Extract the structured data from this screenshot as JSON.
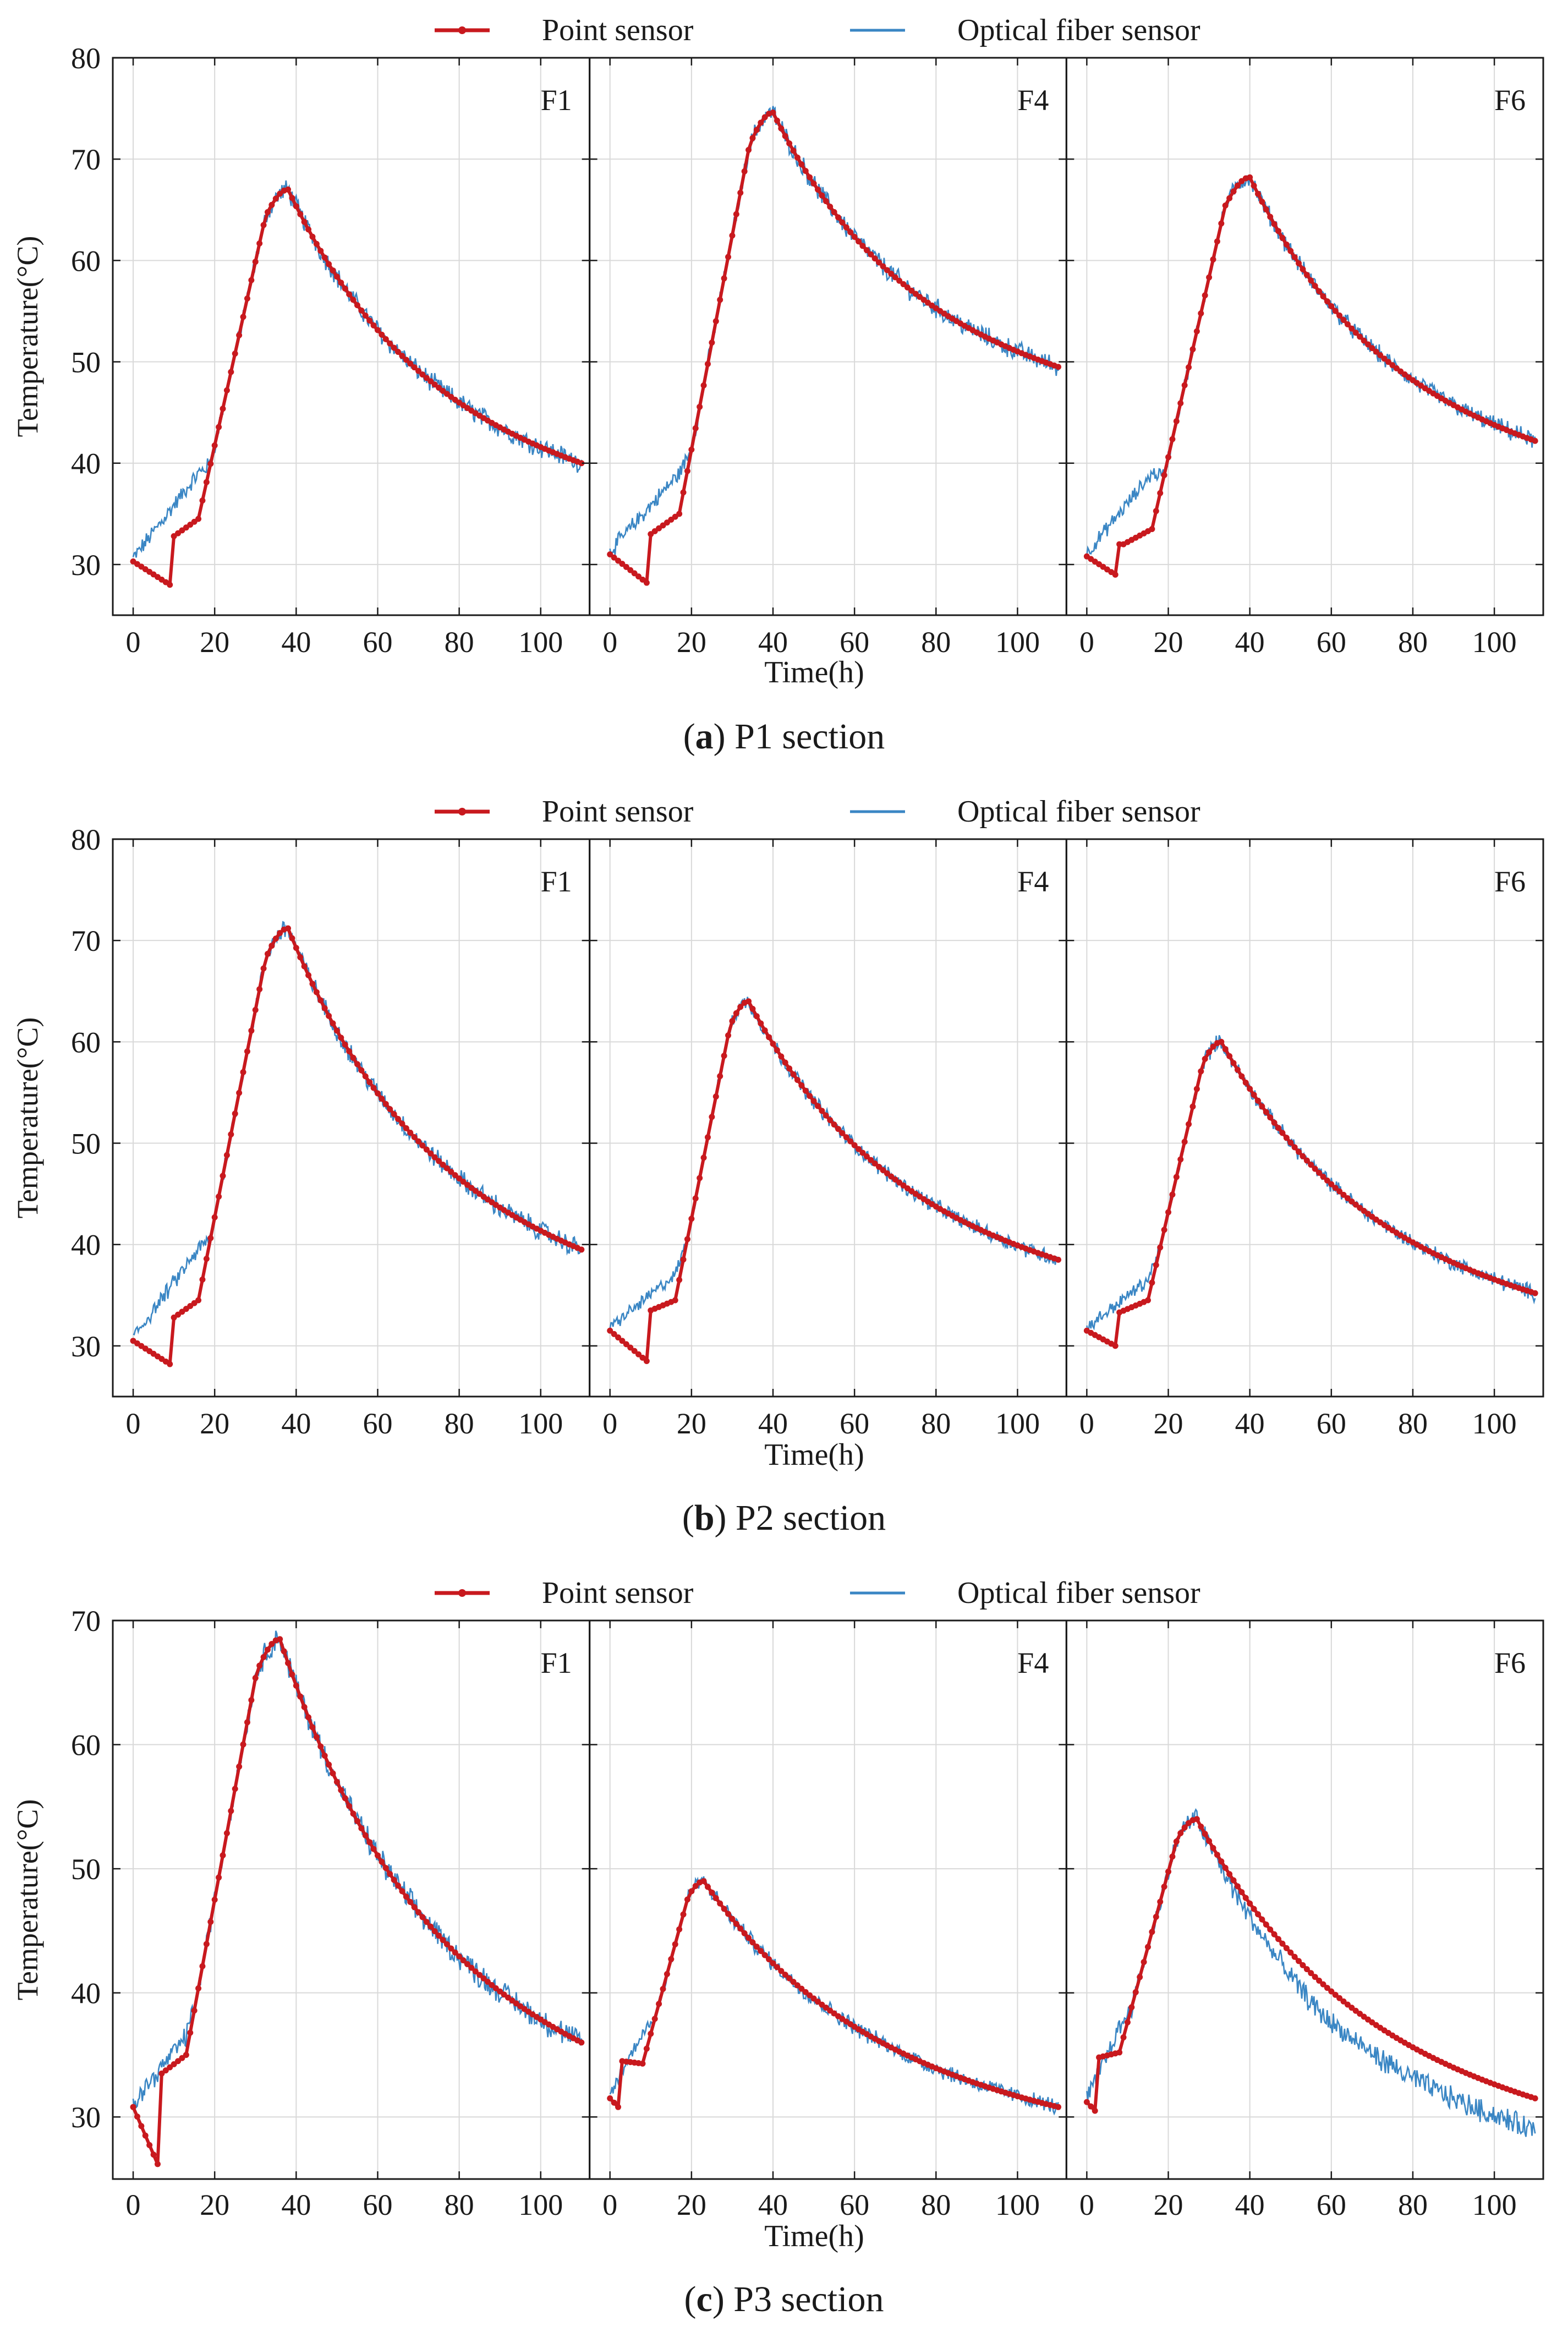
{
  "colors": {
    "point_sensor": "#c8191e",
    "optical_fiber": "#3a86c4",
    "grid": "#d9d9d9",
    "axis": "#1a1a1a"
  },
  "chart_data": [
    {
      "type": "line",
      "caption_letter": "a",
      "caption_text": " P1 section",
      "xlabel": "Time(h)",
      "ylabel": "Temperature(°C)",
      "xlim": [
        -5,
        112
      ],
      "ylim": [
        25,
        80
      ],
      "xticks": [
        0,
        20,
        40,
        60,
        80,
        100
      ],
      "yticks": [
        30,
        40,
        50,
        60,
        70,
        80
      ],
      "legend": [
        "Point sensor",
        "Optical fiber sensor"
      ],
      "legend_position": "top-center",
      "grid": true,
      "panels": [
        {
          "label": "F1",
          "start": 30.3,
          "dip": 28.0,
          "dip_t": 9,
          "jump": 32.8,
          "jump_t": 10,
          "pre": 34.5,
          "pre_t": 16,
          "peak": 67.0,
          "peak_t": 38,
          "end": 40.0,
          "fiber_offset": 4.5,
          "fiber_noise": 0.9
        },
        {
          "label": "F4",
          "start": 31.0,
          "dip": 28.2,
          "dip_t": 9,
          "jump": 33.0,
          "jump_t": 10,
          "pre": 35.0,
          "pre_t": 17,
          "peak": 74.6,
          "peak_t": 40,
          "end": 49.5,
          "fiber_offset": 4.0,
          "fiber_noise": 0.9
        },
        {
          "label": "F6",
          "start": 30.8,
          "dip": 29.0,
          "dip_t": 7,
          "jump": 32.0,
          "jump_t": 9,
          "pre": 33.5,
          "pre_t": 16,
          "peak": 68.2,
          "peak_t": 40,
          "end": 42.2,
          "fiber_offset": 5.5,
          "fiber_noise": 0.8
        }
      ]
    },
    {
      "type": "line",
      "caption_letter": "b",
      "caption_text": " P2 section",
      "xlabel": "Time(h)",
      "ylabel": "Temperature(°C)",
      "xlim": [
        -5,
        112
      ],
      "ylim": [
        25,
        80
      ],
      "xticks": [
        0,
        20,
        40,
        60,
        80,
        100
      ],
      "yticks": [
        30,
        40,
        50,
        60,
        70,
        80
      ],
      "legend": [
        "Point sensor",
        "Optical fiber sensor"
      ],
      "legend_position": "top-center",
      "grid": true,
      "panels": [
        {
          "label": "F1",
          "start": 30.5,
          "dip": 28.2,
          "dip_t": 9,
          "jump": 32.8,
          "jump_t": 10,
          "pre": 34.5,
          "pre_t": 16,
          "peak": 71.2,
          "peak_t": 38,
          "end": 39.5,
          "fiber_offset": 5.0,
          "fiber_noise": 0.9
        },
        {
          "label": "F4",
          "start": 31.5,
          "dip": 28.5,
          "dip_t": 9,
          "jump": 33.5,
          "jump_t": 10,
          "pre": 34.5,
          "pre_t": 16,
          "peak": 64.0,
          "peak_t": 34,
          "end": 38.5,
          "fiber_offset": 2.5,
          "fiber_noise": 0.7
        },
        {
          "label": "F6",
          "start": 31.5,
          "dip": 30.0,
          "dip_t": 7,
          "jump": 33.3,
          "jump_t": 8,
          "pre": 34.5,
          "pre_t": 15,
          "peak": 60.0,
          "peak_t": 33,
          "end": 35.2,
          "fiber_offset": 2.0,
          "fiber_noise": 0.7
        }
      ]
    },
    {
      "type": "line",
      "caption_letter": "c",
      "caption_text": " P3 section",
      "xlabel": "Time(h)",
      "ylabel": "Temperature(°C)",
      "xlim": [
        -5,
        112
      ],
      "ylim": [
        25,
        70
      ],
      "xticks": [
        0,
        20,
        40,
        60,
        80,
        100
      ],
      "yticks": [
        30,
        40,
        50,
        60,
        70
      ],
      "legend": [
        "Point sensor",
        "Optical fiber sensor"
      ],
      "legend_position": "top-center",
      "grid": true,
      "panels": [
        {
          "label": "F1",
          "start": 30.8,
          "dip": 26.2,
          "dip_t": 6,
          "jump": 33.5,
          "jump_t": 7,
          "pre": 35.0,
          "pre_t": 13,
          "peak": 68.5,
          "peak_t": 36,
          "end": 36.0,
          "fiber_offset": 1.5,
          "fiber_noise": 0.9
        },
        {
          "label": "F4",
          "start": 31.5,
          "dip": 30.8,
          "dip_t": 2,
          "jump": 34.5,
          "jump_t": 3,
          "pre": 34.3,
          "pre_t": 8,
          "peak": 49.0,
          "peak_t": 23,
          "end": 30.8,
          "fiber_offset": 2.5,
          "fiber_noise": 0.6
        },
        {
          "label": "F6",
          "start": 31.2,
          "dip": 30.5,
          "dip_t": 2,
          "jump": 34.8,
          "jump_t": 3,
          "pre": 35.2,
          "pre_t": 8,
          "peak": 54.0,
          "peak_t": 27,
          "end": 31.5,
          "fiber_offset": 2.0,
          "fiber_noise": 0.8,
          "fiber_end_bias": -2.5
        }
      ]
    }
  ]
}
